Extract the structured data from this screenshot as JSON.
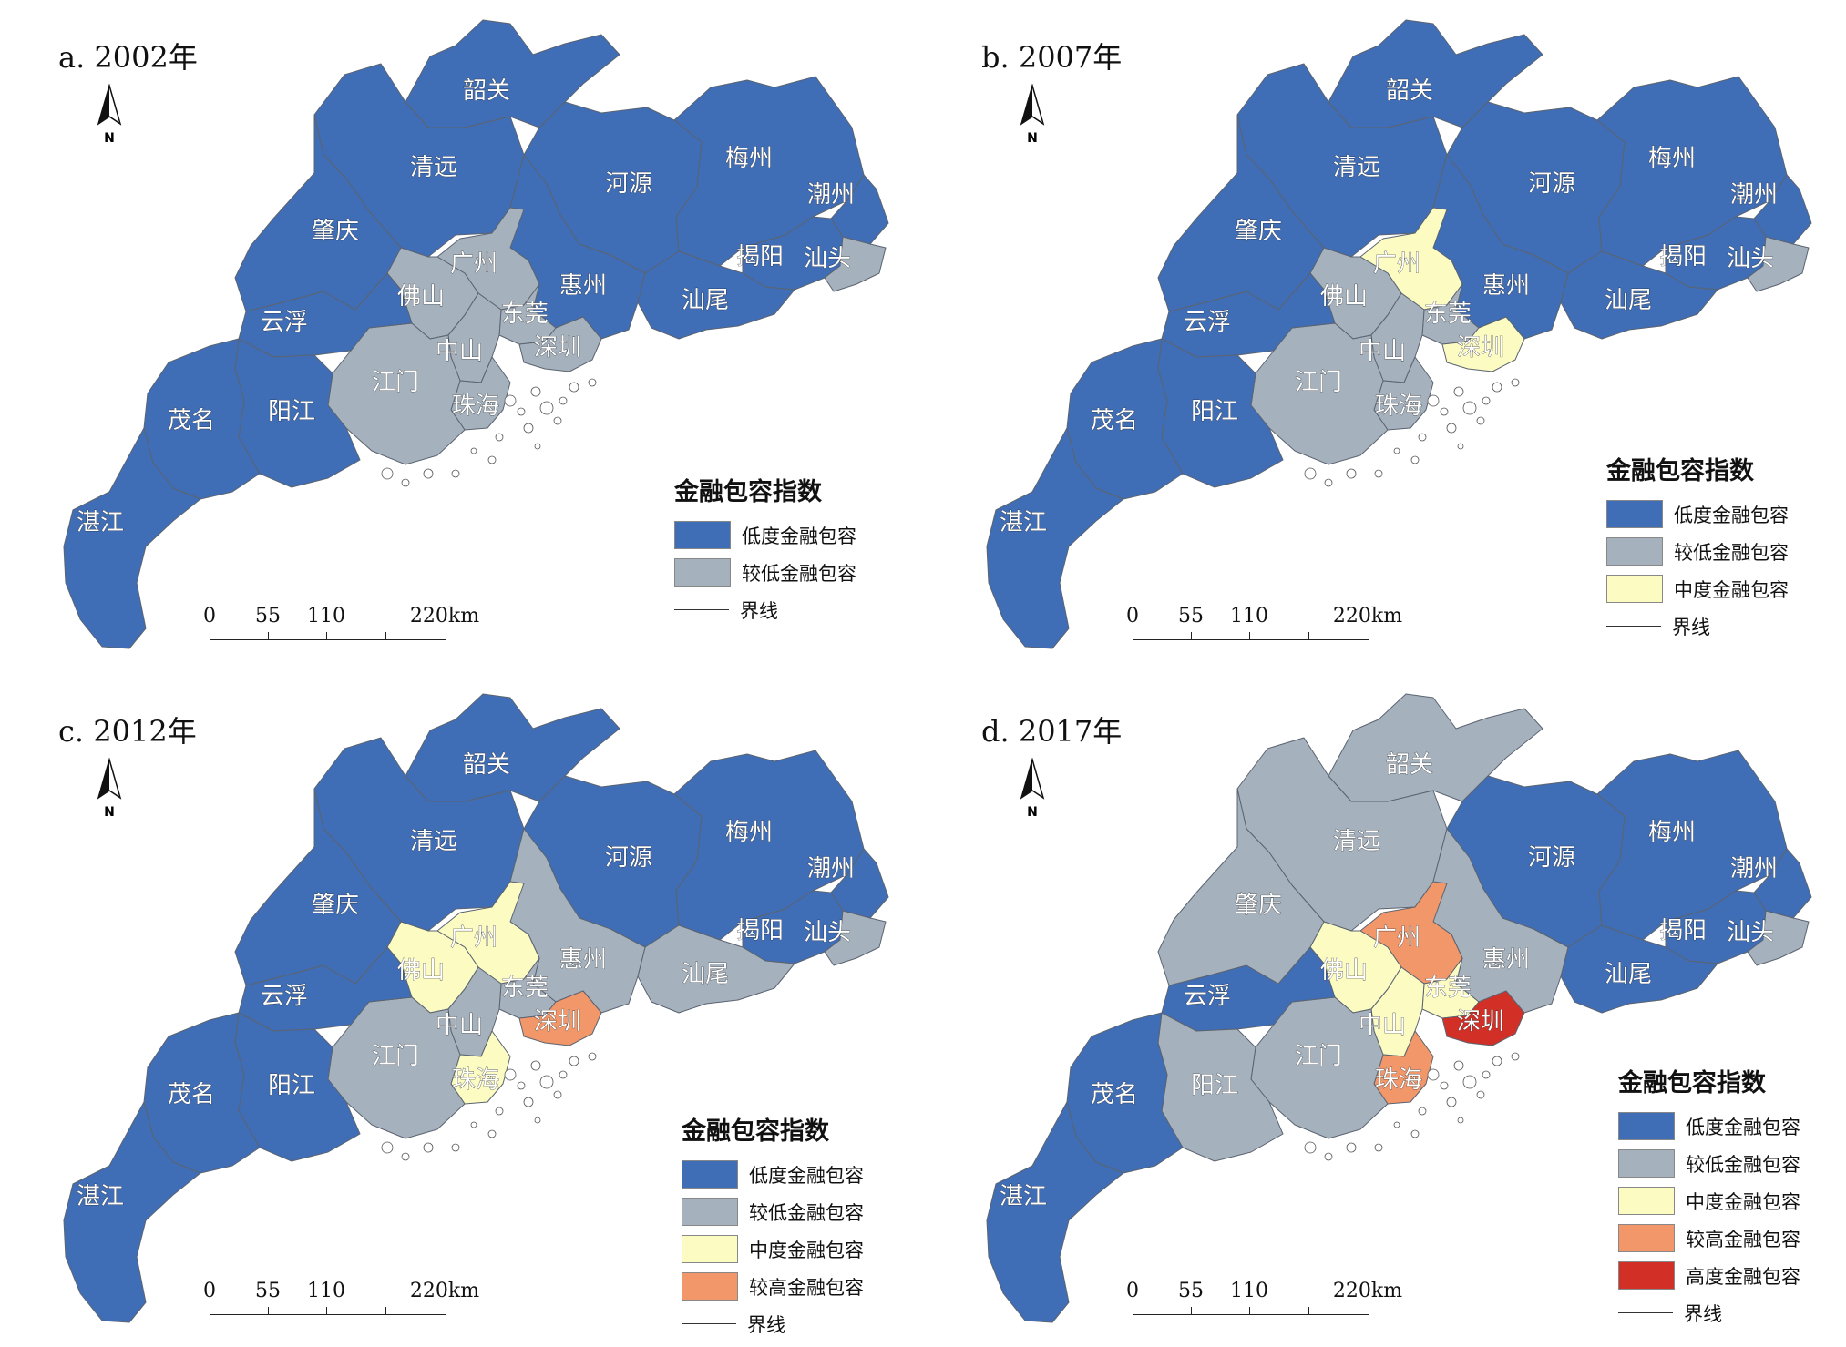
{
  "colors": {
    "low": "#3f6db6",
    "lower": "#a5b1bd",
    "medium": "#fbfbc2",
    "higher": "#f1976a",
    "high": "#d22f27"
  },
  "panels": [
    {
      "title": "a. 2002年",
      "legend_title": "金融包容指数",
      "legend_items": [
        {
          "label": "低度金融包容",
          "key": "low"
        },
        {
          "label": "较低金融包容",
          "key": "lower"
        }
      ],
      "boundary_label": "界线",
      "scale_labels": [
        "0",
        "55",
        "110",
        "220km"
      ],
      "north_label": "N",
      "cities": {
        "韶关": "low",
        "清远": "low",
        "河源": "low",
        "梅州": "low",
        "潮州": "low",
        "肇庆": "low",
        "广州": "lower",
        "惠州": "low",
        "揭阳": "low",
        "汕头": "lower",
        "佛山": "lower",
        "东莞": "lower",
        "汕尾": "low",
        "云浮": "low",
        "深圳": "lower",
        "中山": "lower",
        "江门": "lower",
        "珠海": "lower",
        "茂名": "low",
        "阳江": "low",
        "湛江": "low"
      }
    },
    {
      "title": "b. 2007年",
      "legend_title": "金融包容指数",
      "legend_items": [
        {
          "label": "低度金融包容",
          "key": "low"
        },
        {
          "label": "较低金融包容",
          "key": "lower"
        },
        {
          "label": "中度金融包容",
          "key": "medium"
        }
      ],
      "boundary_label": "界线",
      "scale_labels": [
        "0",
        "55",
        "110",
        "220km"
      ],
      "north_label": "N",
      "cities": {
        "韶关": "low",
        "清远": "low",
        "河源": "low",
        "梅州": "low",
        "潮州": "low",
        "肇庆": "low",
        "广州": "medium",
        "惠州": "low",
        "揭阳": "low",
        "汕头": "lower",
        "佛山": "lower",
        "东莞": "lower",
        "汕尾": "low",
        "云浮": "low",
        "深圳": "medium",
        "中山": "lower",
        "江门": "lower",
        "珠海": "lower",
        "茂名": "low",
        "阳江": "low",
        "湛江": "low"
      }
    },
    {
      "title": "c. 2012年",
      "legend_title": "金融包容指数",
      "legend_items": [
        {
          "label": "低度金融包容",
          "key": "low"
        },
        {
          "label": "较低金融包容",
          "key": "lower"
        },
        {
          "label": "中度金融包容",
          "key": "medium"
        },
        {
          "label": "较高金融包容",
          "key": "higher"
        }
      ],
      "boundary_label": "界线",
      "scale_labels": [
        "0",
        "55",
        "110",
        "220km"
      ],
      "north_label": "N",
      "cities": {
        "韶关": "low",
        "清远": "low",
        "河源": "low",
        "梅州": "low",
        "潮州": "low",
        "肇庆": "low",
        "广州": "medium",
        "惠州": "lower",
        "揭阳": "low",
        "汕头": "lower",
        "佛山": "medium",
        "东莞": "lower",
        "汕尾": "lower",
        "云浮": "low",
        "深圳": "higher",
        "中山": "lower",
        "江门": "lower",
        "珠海": "medium",
        "茂名": "low",
        "阳江": "low",
        "湛江": "low"
      }
    },
    {
      "title": "d. 2017年",
      "legend_title": "金融包容指数",
      "legend_items": [
        {
          "label": "低度金融包容",
          "key": "low"
        },
        {
          "label": "较低金融包容",
          "key": "lower"
        },
        {
          "label": "中度金融包容",
          "key": "medium"
        },
        {
          "label": "较高金融包容",
          "key": "higher"
        },
        {
          "label": "高度金融包容",
          "key": "high"
        }
      ],
      "boundary_label": "界线",
      "scale_labels": [
        "0",
        "55",
        "110",
        "220km"
      ],
      "north_label": "N",
      "cities": {
        "韶关": "lower",
        "清远": "lower",
        "河源": "low",
        "梅州": "low",
        "潮州": "low",
        "肇庆": "lower",
        "广州": "higher",
        "惠州": "lower",
        "揭阳": "low",
        "汕头": "lower",
        "佛山": "medium",
        "东莞": "medium",
        "汕尾": "low",
        "云浮": "low",
        "深圳": "high",
        "中山": "medium",
        "江门": "lower",
        "珠海": "higher",
        "茂名": "low",
        "阳江": "lower",
        "湛江": "low"
      }
    }
  ]
}
